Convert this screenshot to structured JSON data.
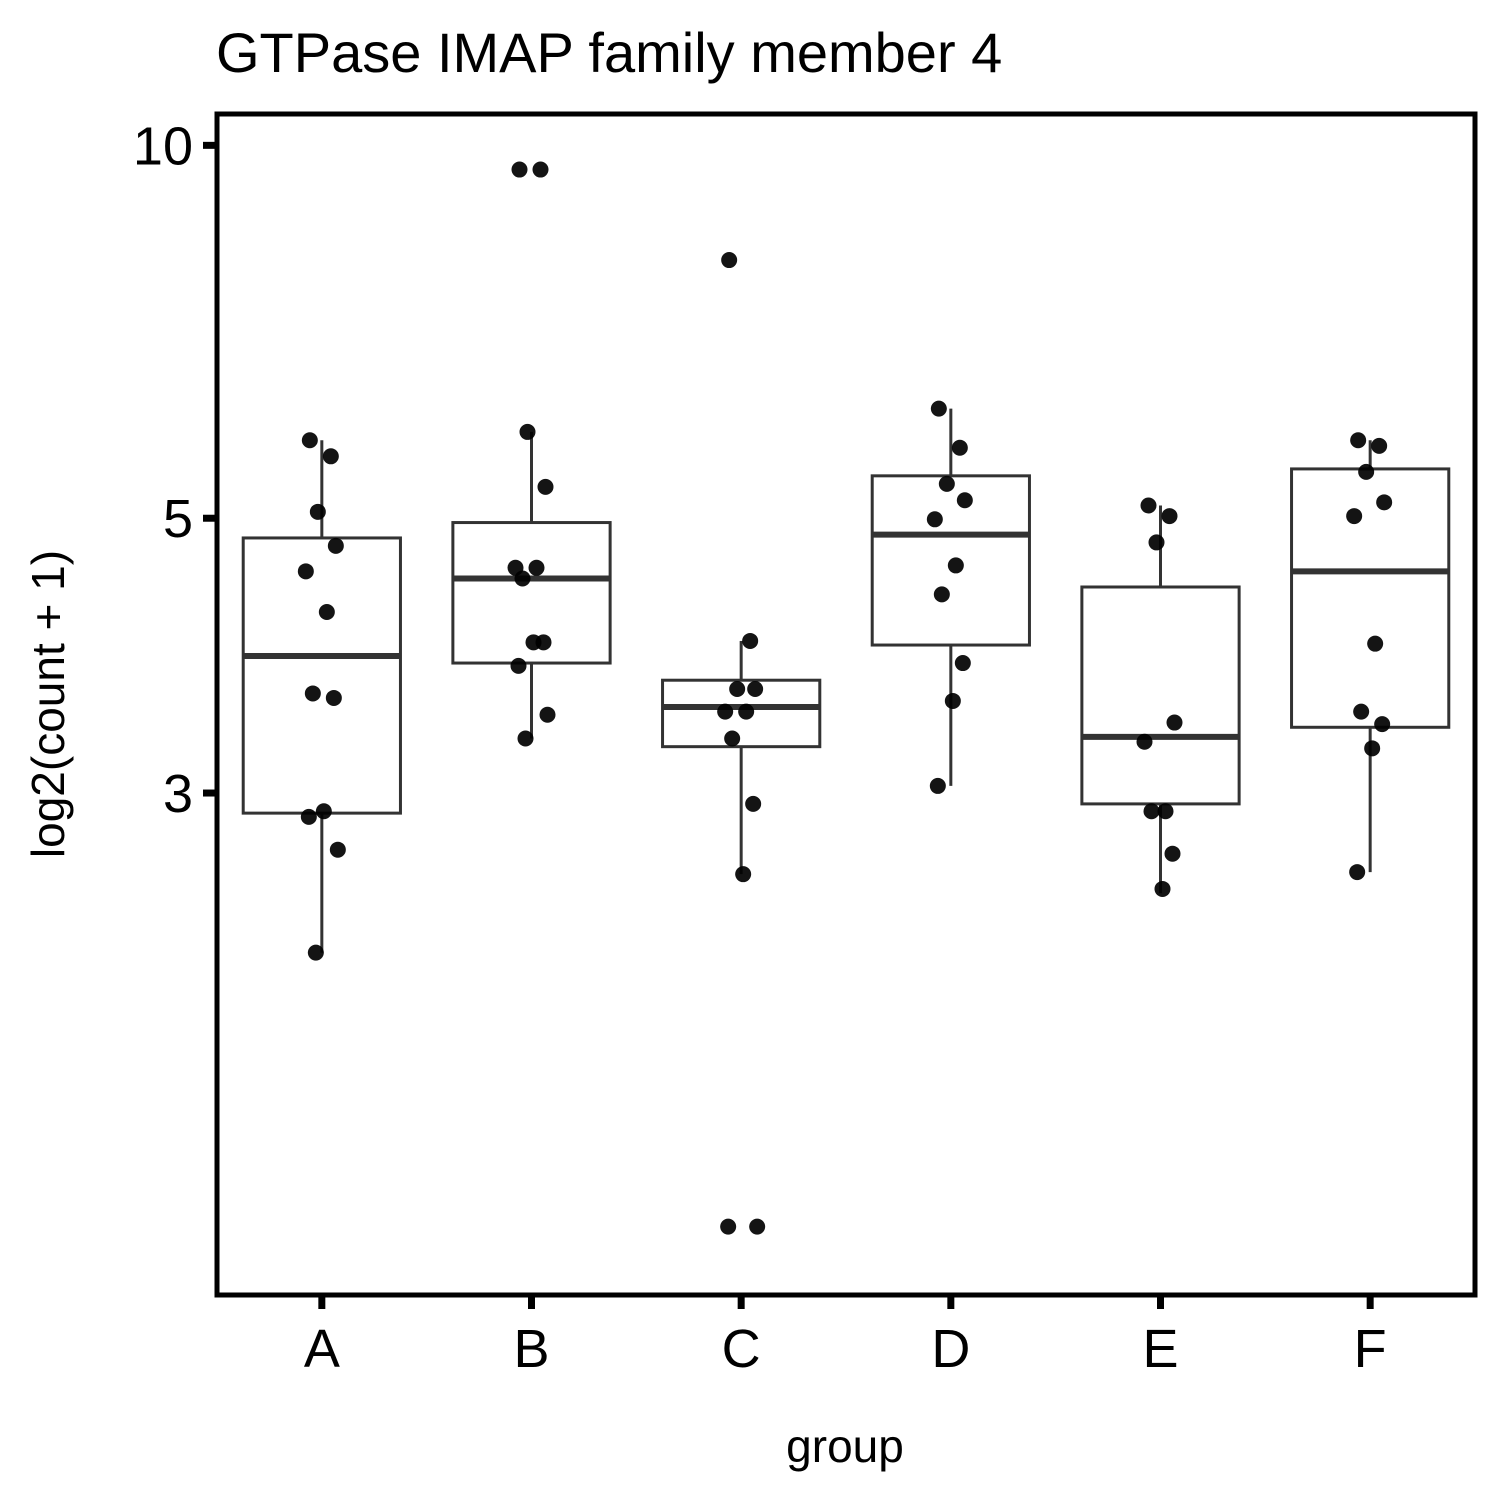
{
  "chart_data": {
    "type": "box",
    "title": "GTPase IMAP family member 4",
    "xlabel": "group",
    "ylabel": "log2(count + 1)",
    "y_scale": "log",
    "ylim": [
      1.18,
      10.6
    ],
    "y_ticks": [
      3,
      5,
      10
    ],
    "y_tick_labels": [
      "3",
      "5",
      "10"
    ],
    "grid": false,
    "legend": "none",
    "categories": [
      "A",
      "B",
      "C",
      "D",
      "E",
      "F"
    ],
    "boxes": [
      {
        "group": "A",
        "min": 2.23,
        "q1": 2.89,
        "median": 3.87,
        "q3": 4.82,
        "max": 5.78
      },
      {
        "group": "B",
        "min": 3.32,
        "q1": 3.82,
        "median": 4.47,
        "q3": 4.96,
        "max": 5.87
      },
      {
        "group": "C",
        "min": 2.58,
        "q1": 3.27,
        "median": 3.52,
        "q3": 3.7,
        "max": 3.98
      },
      {
        "group": "D",
        "min": 3.04,
        "q1": 3.95,
        "median": 4.85,
        "q3": 5.41,
        "max": 6.13
      },
      {
        "group": "E",
        "min": 2.49,
        "q1": 2.94,
        "median": 3.33,
        "q3": 4.4,
        "max": 5.12
      },
      {
        "group": "F",
        "min": 2.59,
        "q1": 3.39,
        "median": 4.53,
        "q3": 5.48,
        "max": 5.78
      }
    ],
    "points": [
      {
        "group": "A",
        "values": [
          5.78,
          5.61,
          5.06,
          4.75,
          4.53,
          4.2,
          3.61,
          3.58,
          2.9,
          2.87,
          2.7,
          2.23
        ]
      },
      {
        "group": "B",
        "values": [
          9.56,
          9.56,
          5.87,
          5.3,
          4.56,
          4.56,
          4.47,
          3.97,
          3.97,
          3.8,
          3.47,
          3.32
        ]
      },
      {
        "group": "C",
        "values": [
          8.08,
          3.98,
          3.64,
          3.64,
          3.49,
          3.49,
          3.32,
          2.94,
          2.58,
          1.34,
          1.34
        ]
      },
      {
        "group": "D",
        "values": [
          6.13,
          5.7,
          5.33,
          5.17,
          4.99,
          4.58,
          4.34,
          3.82,
          3.56,
          3.04
        ]
      },
      {
        "group": "E",
        "values": [
          5.12,
          5.02,
          4.78,
          3.42,
          3.3,
          2.9,
          2.9,
          2.68,
          2.51
        ]
      },
      {
        "group": "F",
        "values": [
          5.78,
          5.72,
          5.45,
          5.15,
          5.02,
          3.96,
          3.49,
          3.41,
          3.26,
          2.59
        ]
      }
    ]
  }
}
